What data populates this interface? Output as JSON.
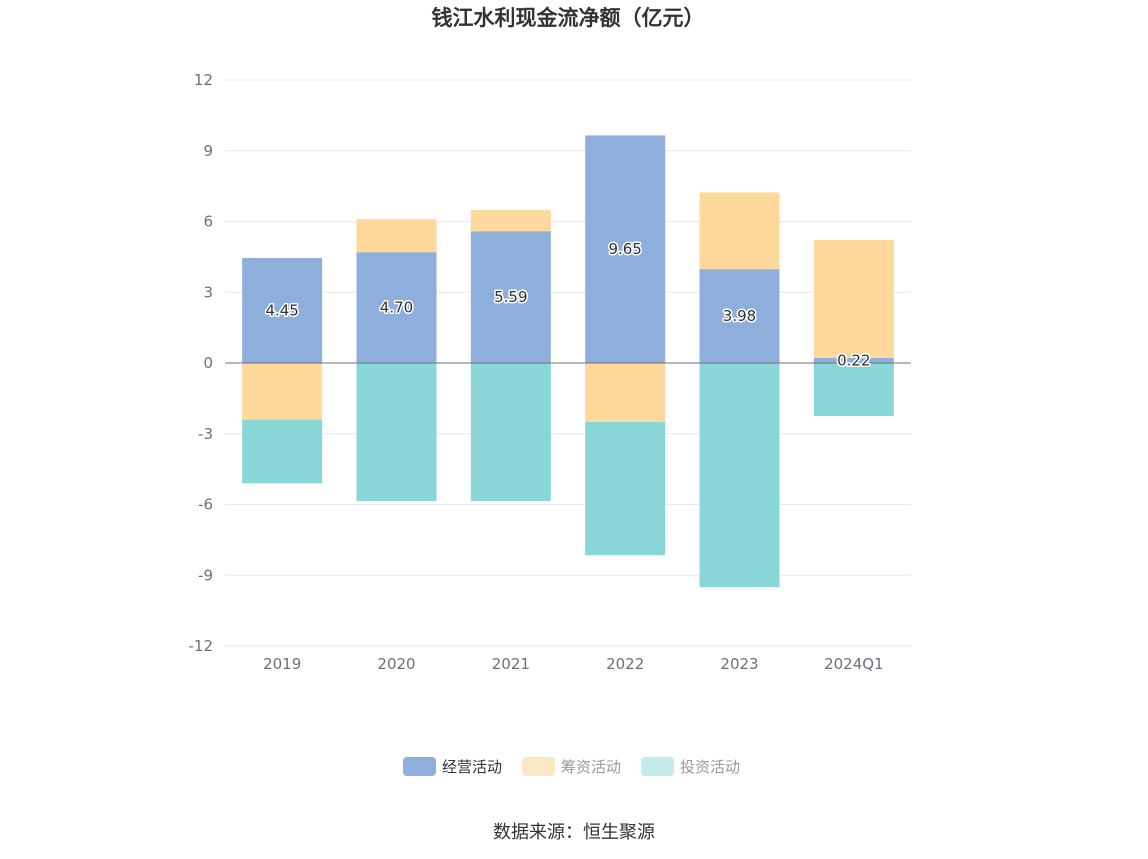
{
  "chart_data": {
    "type": "bar",
    "stacked": true,
    "title": "钱江水利现金流净额（亿元）",
    "categories": [
      "2019",
      "2020",
      "2021",
      "2022",
      "2023",
      "2024Q1"
    ],
    "series": [
      {
        "name": "经营活动",
        "color": "#8eaedb",
        "values": [
          4.45,
          4.7,
          5.59,
          9.65,
          3.98,
          0.22
        ],
        "labels": [
          "4.45",
          "4.70",
          "5.59",
          "9.65",
          "3.98",
          "0.22"
        ]
      },
      {
        "name": "筹资活动",
        "color": "#fed99b",
        "values": [
          -2.4,
          1.4,
          0.9,
          -2.5,
          3.25,
          5.0
        ]
      },
      {
        "name": "投资活动",
        "color": "#89d6d9",
        "values": [
          -2.7,
          -5.85,
          -5.85,
          -5.65,
          -9.5,
          -2.25
        ]
      }
    ],
    "ylim": [
      -12,
      12
    ],
    "yticks": [
      12,
      9,
      6,
      3,
      0,
      -3,
      -6,
      -9,
      -12
    ],
    "grid": true,
    "legend_position": "bottom",
    "legend_inactive_colors": [
      "#fde8c5",
      "#c3ebec"
    ],
    "source": "数据来源：恒生聚源"
  }
}
